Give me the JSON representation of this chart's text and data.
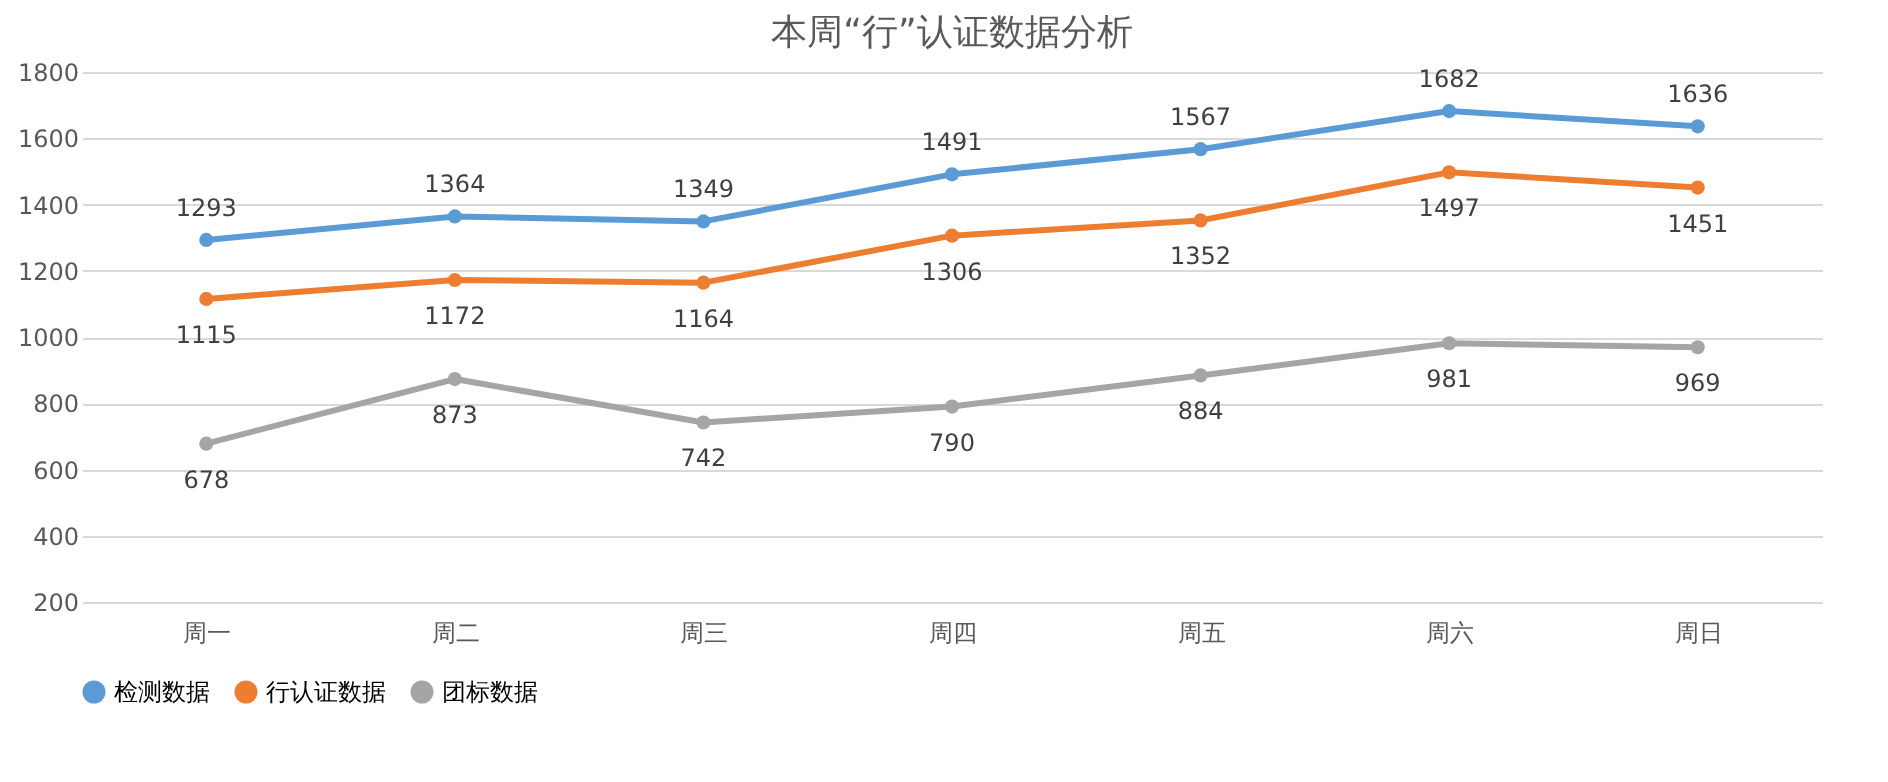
{
  "chart_data": {
    "type": "line",
    "title": "本周“行”认证数据分析",
    "categories": [
      "周一",
      "周二",
      "周三",
      "周四",
      "周五",
      "周六",
      "周日"
    ],
    "series": [
      {
        "name": "检测数据",
        "color": "#5b9bd5",
        "values": [
          1293,
          1364,
          1349,
          1491,
          1567,
          1682,
          1636
        ]
      },
      {
        "name": "行认证数据",
        "color": "#ed7d31",
        "values": [
          1115,
          1172,
          1164,
          1306,
          1352,
          1497,
          1451
        ]
      },
      {
        "name": "团标数据",
        "color": "#a5a5a5",
        "values": [
          678,
          873,
          742,
          790,
          884,
          981,
          969
        ]
      }
    ],
    "ylim": [
      200,
      1800
    ],
    "yticks": [
      200,
      400,
      600,
      800,
      1000,
      1200,
      1400,
      1600,
      1800
    ],
    "grid": "y",
    "legend": "bottom",
    "marker": "circle",
    "line_style": "solid",
    "data_labels": true
  }
}
